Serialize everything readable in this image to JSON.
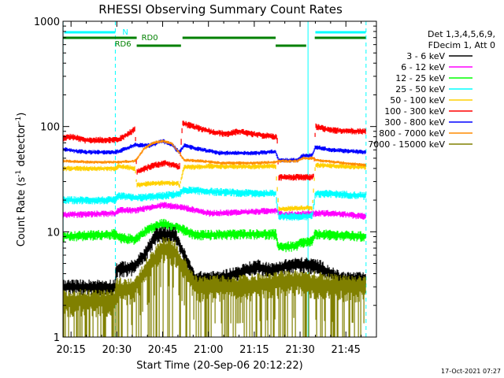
{
  "chart_data": {
    "type": "line",
    "title": "RHESSI Observing Summary Count Rates",
    "xlabel": "Start Time (20-Sep-06 20:12:22)",
    "ylabel_main": "Count Rate (s",
    "ylabel_sup1": "-1",
    "ylabel_mid": " detector",
    "ylabel_sup2": "-1",
    "ylabel_end": ")",
    "x_start_min": 1212.37,
    "xlim_minutes": [
      1212.37,
      1315
    ],
    "ylim": [
      1,
      1000
    ],
    "y_scale": "log",
    "xticks": [
      {
        "label": "20:15",
        "min": 1215
      },
      {
        "label": "20:30",
        "min": 1230
      },
      {
        "label": "20:45",
        "min": 1245
      },
      {
        "label": "21:00",
        "min": 1260
      },
      {
        "label": "21:15",
        "min": 1275
      },
      {
        "label": "21:30",
        "min": 1290
      },
      {
        "label": "21:45",
        "min": 1305
      }
    ],
    "yticks": [
      {
        "label": "1",
        "value": 1
      },
      {
        "label": "10",
        "value": 10
      },
      {
        "label": "100",
        "value": 100
      },
      {
        "label": "1000",
        "value": 1000
      }
    ],
    "legend": {
      "placement": "outside-right",
      "header": [
        "Det 1,3,4,5,6,9,",
        "FDecim 1, Att 0"
      ]
    },
    "series": [
      {
        "name": "3 - 6 keV",
        "color": "#000000",
        "z": 8,
        "points": [
          [
            1212.4,
            3
          ],
          [
            1229.3,
            3
          ],
          [
            1229.8,
            4.4
          ],
          [
            1235.5,
            4.6
          ],
          [
            1239,
            6
          ],
          [
            1243,
            9.5
          ],
          [
            1249,
            9.5
          ],
          [
            1251,
            7
          ],
          [
            1255.5,
            3.6
          ],
          [
            1263,
            3.6
          ],
          [
            1269,
            4
          ],
          [
            1276,
            4.7
          ],
          [
            1281,
            4.3
          ],
          [
            1285,
            4.7
          ],
          [
            1290,
            4.9
          ],
          [
            1296,
            4.7
          ],
          [
            1303,
            3.6
          ],
          [
            1311.5,
            3.5
          ]
        ],
        "noise": 0.12
      },
      {
        "name": "6 - 12 keV",
        "color": "#ff00ff",
        "z": 4,
        "points": [
          [
            1212.4,
            14.5
          ],
          [
            1229.5,
            15
          ],
          [
            1230.5,
            16
          ],
          [
            1236,
            16
          ],
          [
            1245,
            18
          ],
          [
            1252,
            17
          ],
          [
            1260,
            15
          ],
          [
            1275,
            15.5
          ],
          [
            1282,
            16
          ],
          [
            1284.5,
            14.5
          ],
          [
            1295,
            15
          ],
          [
            1300,
            15
          ],
          [
            1311.5,
            14
          ]
        ],
        "noise": 0.05
      },
      {
        "name": "12 - 25 keV",
        "color": "#00ff00",
        "z": 3,
        "points": [
          [
            1212.4,
            9
          ],
          [
            1229.5,
            9.5
          ],
          [
            1230.5,
            8.8
          ],
          [
            1236,
            8.5
          ],
          [
            1240,
            10.5
          ],
          [
            1245,
            12
          ],
          [
            1250,
            11
          ],
          [
            1255.5,
            9.3
          ],
          [
            1270,
            9.5
          ],
          [
            1282,
            9.5
          ],
          [
            1283,
            7.2
          ],
          [
            1289,
            7.3
          ],
          [
            1290,
            7.8
          ],
          [
            1294,
            8.2
          ],
          [
            1295,
            9.5
          ],
          [
            1311.5,
            9
          ]
        ],
        "noise": 0.08
      },
      {
        "name": "25 - 50 keV",
        "color": "#00ffff",
        "z": 5,
        "points": [
          [
            1212.4,
            20
          ],
          [
            1229.5,
            20
          ],
          [
            1230.5,
            22
          ],
          [
            1236,
            21
          ],
          [
            1245,
            22
          ],
          [
            1250.5,
            23
          ],
          [
            1252,
            25
          ],
          [
            1262,
            24
          ],
          [
            1270,
            23.5
          ],
          [
            1282,
            23
          ],
          [
            1283,
            14
          ],
          [
            1294,
            14
          ],
          [
            1295,
            23
          ],
          [
            1300,
            23
          ],
          [
            1311.5,
            22
          ]
        ],
        "noise": 0.06
      },
      {
        "name": "50 - 100 keV",
        "color": "#ffd000",
        "z": 6,
        "points": [
          [
            1212.4,
            40
          ],
          [
            1229.5,
            40
          ],
          [
            1230.5,
            42
          ],
          [
            1236,
            40
          ],
          [
            1236.5,
            28
          ],
          [
            1242,
            29
          ],
          [
            1250,
            29
          ],
          [
            1250.5,
            27
          ],
          [
            1252,
            41
          ],
          [
            1262,
            42
          ],
          [
            1273,
            41.5
          ],
          [
            1282,
            42
          ],
          [
            1283,
            16.5
          ],
          [
            1294,
            17
          ],
          [
            1295,
            43
          ],
          [
            1311.5,
            41
          ]
        ],
        "noise": 0.04
      },
      {
        "name": "100 - 300 keV",
        "color": "#ff0000",
        "z": 2,
        "points": [
          [
            1212.4,
            78
          ],
          [
            1215,
            80
          ],
          [
            1220,
            74
          ],
          [
            1229.5,
            75
          ],
          [
            1230.5,
            75
          ],
          [
            1234,
            86
          ],
          [
            1236,
            97
          ],
          [
            1236.5,
            37
          ],
          [
            1242,
            43
          ],
          [
            1246,
            45
          ],
          [
            1250,
            42
          ],
          [
            1250.5,
            40
          ],
          [
            1251.5,
            108
          ],
          [
            1256,
            98
          ],
          [
            1262,
            88
          ],
          [
            1266,
            85
          ],
          [
            1270,
            90
          ],
          [
            1274,
            85
          ],
          [
            1282,
            80
          ],
          [
            1282.5,
            78
          ],
          [
            1283,
            33
          ],
          [
            1288,
            33
          ],
          [
            1294,
            33
          ],
          [
            1294.5,
            35
          ],
          [
            1295,
            100
          ],
          [
            1300,
            92
          ],
          [
            1311.5,
            90
          ]
        ],
        "noise": 0.05
      },
      {
        "name": "300 - 800 keV",
        "color": "#0000ff",
        "z": 7,
        "points": [
          [
            1212.4,
            61
          ],
          [
            1220,
            57
          ],
          [
            1229.5,
            57
          ],
          [
            1230.5,
            58
          ],
          [
            1236,
            67
          ],
          [
            1241,
            66
          ],
          [
            1245,
            73
          ],
          [
            1248,
            67
          ],
          [
            1250.5,
            57
          ],
          [
            1252,
            66
          ],
          [
            1258,
            60
          ],
          [
            1264,
            56
          ],
          [
            1270,
            56
          ],
          [
            1276,
            56
          ],
          [
            1282,
            58
          ],
          [
            1283,
            48
          ],
          [
            1289,
            48
          ],
          [
            1291,
            53
          ],
          [
            1294,
            53
          ],
          [
            1295,
            64
          ],
          [
            1300,
            60
          ],
          [
            1311.5,
            57
          ]
        ],
        "noise": 0.035
      },
      {
        "name": "800 - 7000 keV",
        "color": "#ff8c00",
        "z": 9,
        "points": [
          [
            1212.4,
            47
          ],
          [
            1220,
            46
          ],
          [
            1229.5,
            46
          ],
          [
            1230.5,
            46
          ],
          [
            1236,
            47
          ],
          [
            1239,
            62
          ],
          [
            1242,
            70
          ],
          [
            1245,
            73
          ],
          [
            1248,
            69
          ],
          [
            1250.5,
            56
          ],
          [
            1252,
            48
          ],
          [
            1258,
            47
          ],
          [
            1264,
            45
          ],
          [
            1270,
            45
          ],
          [
            1276,
            45
          ],
          [
            1282,
            46
          ],
          [
            1283,
            47
          ],
          [
            1289,
            47
          ],
          [
            1291,
            50
          ],
          [
            1294,
            50
          ],
          [
            1295,
            48
          ],
          [
            1311.5,
            43
          ]
        ],
        "noise": 0.025
      },
      {
        "name": "7000 - 15000 keV",
        "color": "#808000",
        "z": 10,
        "points": [
          [
            1212.4,
            2.2
          ],
          [
            1229.3,
            2.2
          ],
          [
            1229.8,
            2.8
          ],
          [
            1235.5,
            2.9
          ],
          [
            1240,
            4.5
          ],
          [
            1245,
            7
          ],
          [
            1249,
            6.5
          ],
          [
            1252,
            4.5
          ],
          [
            1256,
            3
          ],
          [
            1270,
            3
          ],
          [
            1283,
            3.3
          ],
          [
            1290,
            3.4
          ],
          [
            1300,
            3.1
          ],
          [
            1311.5,
            3
          ]
        ],
        "noise": 0.2,
        "spiky": true
      }
    ],
    "attenuator_states": [
      {
        "label": "N",
        "color": "#00ffff",
        "level": "upper",
        "segments": [
          [
            1212.8,
            1229.5
          ],
          [
            1295,
            1311.5
          ]
        ]
      },
      {
        "label": "RD0",
        "color": "#008000",
        "level": "mid",
        "segments": [
          [
            1212.4,
            1236.5
          ],
          [
            1251.5,
            1282
          ],
          [
            1294.8,
            1311.5
          ]
        ]
      },
      {
        "label": "RD6",
        "color": "#008000",
        "level": "lower",
        "segments": [
          [
            1236.5,
            1251
          ],
          [
            1282,
            1292
          ]
        ]
      }
    ],
    "markers": [
      {
        "style": "solid",
        "color": "#00ffff",
        "min": 1212.4
      },
      {
        "style": "dashed",
        "color": "#00ffff",
        "min": 1229.5
      },
      {
        "style": "solid",
        "color": "#00ffff",
        "min": 1292.6
      },
      {
        "style": "dashed",
        "color": "#00ffff",
        "min": 1311.6
      }
    ]
  },
  "footer_timestamp": "17-Oct-2021 07:27"
}
